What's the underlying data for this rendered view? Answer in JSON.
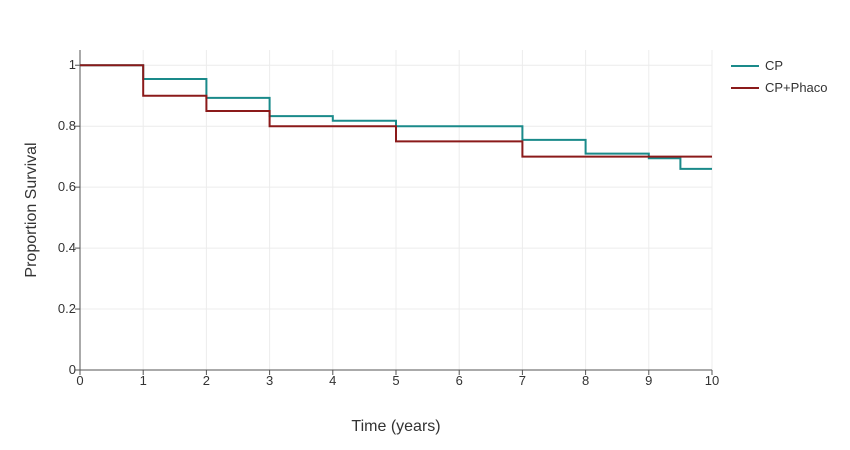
{
  "chart_data": {
    "type": "line",
    "step": true,
    "title": "",
    "xlabel": "Time (years)",
    "ylabel": "Proportion Survival",
    "xlim": [
      0,
      10
    ],
    "ylim": [
      0,
      1.05
    ],
    "x_ticks": [
      0,
      1,
      2,
      3,
      4,
      5,
      6,
      7,
      8,
      9,
      10
    ],
    "x_tick_labels": [
      "0",
      "1",
      "2",
      "3",
      "4",
      "5",
      "6",
      "7",
      "8",
      "9",
      "10"
    ],
    "y_ticks": [
      0,
      0.2,
      0.4,
      0.6,
      0.8,
      1
    ],
    "y_tick_labels": [
      "0",
      "0.2",
      "0.4",
      "0.6",
      "0.8",
      "1"
    ],
    "grid": true,
    "legend_position": "top-right",
    "series": [
      {
        "name": "CP",
        "color": "#1a8a8a",
        "x": [
          0,
          1,
          2,
          3,
          4,
          5,
          7,
          8,
          9,
          9.5,
          10
        ],
        "y": [
          1.0,
          0.955,
          0.893,
          0.833,
          0.818,
          0.8,
          0.755,
          0.71,
          0.695,
          0.66,
          0.66
        ]
      },
      {
        "name": "CP+Phaco",
        "color": "#8b1a1a",
        "x": [
          0,
          1,
          2,
          3,
          5,
          7,
          10
        ],
        "y": [
          1.0,
          0.9,
          0.85,
          0.8,
          0.75,
          0.7,
          0.7
        ]
      }
    ]
  }
}
